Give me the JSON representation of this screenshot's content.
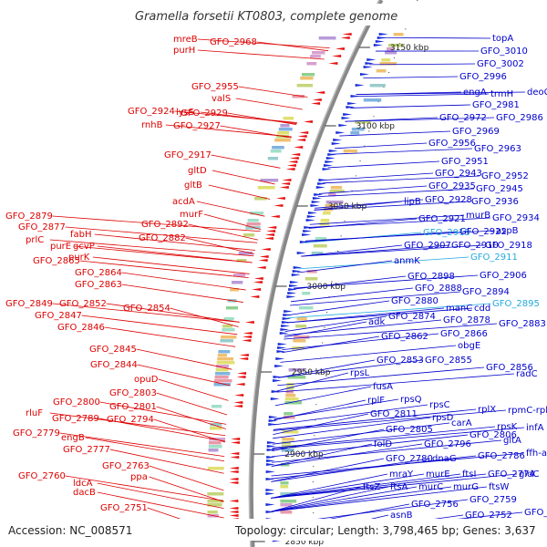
{
  "title": "Gramella forsetii KT0803, complete genome",
  "accession": "Accession: NC_008571",
  "topology": "Topology: circular; Length: 3,798,465 bp; Genes: 3,637",
  "colors": {
    "left_labels": "#dd0000",
    "right_labels": "#0000cc",
    "highlight": "#22aadd",
    "backbone": "#888888"
  },
  "kbp_marks": [
    {
      "text": "3150 kbp"
    },
    {
      "text": "3100 kbp"
    },
    {
      "text": "3050 kbp"
    },
    {
      "text": "3000 kbp"
    },
    {
      "text": "2950 kbp"
    },
    {
      "text": "2900 kbp"
    },
    {
      "text": "2850 kbp"
    }
  ],
  "left_labels": [
    {
      "text": "mreB"
    },
    {
      "text": "GFO_2968"
    },
    {
      "text": "purH"
    },
    {
      "text": "GFO_2955"
    },
    {
      "text": "valS"
    },
    {
      "text": "GFO_2924"
    },
    {
      "text": "lysS"
    },
    {
      "text": "GFO_2929"
    },
    {
      "text": "rnhB"
    },
    {
      "text": "GFO_2927"
    },
    {
      "text": "GFO_2917"
    },
    {
      "text": "gltD"
    },
    {
      "text": "gltB"
    },
    {
      "text": "acdA"
    },
    {
      "text": "murF"
    },
    {
      "text": "GFO_2879"
    },
    {
      "text": "GFO_2892"
    },
    {
      "text": "GFO_2877"
    },
    {
      "text": "fabH"
    },
    {
      "text": "GFO_2882"
    },
    {
      "text": "prlC"
    },
    {
      "text": "gcvP"
    },
    {
      "text": "purE"
    },
    {
      "text": "purK"
    },
    {
      "text": "GFO_2865"
    },
    {
      "text": "GFO_2864"
    },
    {
      "text": "GFO_2863"
    },
    {
      "text": "GFO_2849"
    },
    {
      "text": "GFO_2852"
    },
    {
      "text": "GFO_2854"
    },
    {
      "text": "GFO_2847"
    },
    {
      "text": "GFO_2846"
    },
    {
      "text": "GFO_2845"
    },
    {
      "text": "GFO_2844"
    },
    {
      "text": "opuD"
    },
    {
      "text": "GFO_2803"
    },
    {
      "text": "GFO_2800"
    },
    {
      "text": "GFO_2801"
    },
    {
      "text": "rluF"
    },
    {
      "text": "GFO_2789"
    },
    {
      "text": "GFO_2794"
    },
    {
      "text": "GFO_2779"
    },
    {
      "text": "engB"
    },
    {
      "text": "GFO_2777"
    },
    {
      "text": "GFO_2763"
    },
    {
      "text": "GFO_2760"
    },
    {
      "text": "ppa"
    },
    {
      "text": "ldcA"
    },
    {
      "text": "dacB"
    },
    {
      "text": "GFO_2751"
    }
  ],
  "right_labels": [
    {
      "text": "topA"
    },
    {
      "text": "GFO_3010"
    },
    {
      "text": "GFO_3002"
    },
    {
      "text": "GFO_2996"
    },
    {
      "text": "deoC"
    },
    {
      "text": "engA"
    },
    {
      "text": "trmH"
    },
    {
      "text": "GFO_2981"
    },
    {
      "text": "GFO_2972"
    },
    {
      "text": "GFO_2986"
    },
    {
      "text": "GFO_2969"
    },
    {
      "text": "GFO_2956"
    },
    {
      "text": "GFO_2963"
    },
    {
      "text": "GFO_2951"
    },
    {
      "text": "GFO_2943"
    },
    {
      "text": "GFO_2952"
    },
    {
      "text": "GFO_2935"
    },
    {
      "text": "GFO_2945"
    },
    {
      "text": "lipB"
    },
    {
      "text": "GFO_2928"
    },
    {
      "text": "GFO_2936"
    },
    {
      "text": "murB"
    },
    {
      "text": "GFO_2934"
    },
    {
      "text": "GFO_2921"
    },
    {
      "text": "GFO_2915"
    },
    {
      "text": "GFO_2922"
    },
    {
      "text": "aspB"
    },
    {
      "text": "GFO_2907"
    },
    {
      "text": "GFO_2910"
    },
    {
      "text": "GFO_2918"
    },
    {
      "text": "GFO_2911"
    },
    {
      "text": "anmK"
    },
    {
      "text": "GFO_2898"
    },
    {
      "text": "GFO_2906"
    },
    {
      "text": "GFO_2888"
    },
    {
      "text": "GFO_2894"
    },
    {
      "text": "GFO_2880"
    },
    {
      "text": "GFO_2895"
    },
    {
      "text": "manC"
    },
    {
      "text": "cdd"
    },
    {
      "text": "GFO_2874"
    },
    {
      "text": "GFO_2878"
    },
    {
      "text": "adk"
    },
    {
      "text": "GFO_2883"
    },
    {
      "text": "GFO_2862"
    },
    {
      "text": "GFO_2866"
    },
    {
      "text": "obgE"
    },
    {
      "text": "GFO_2853"
    },
    {
      "text": "GFO_2855"
    },
    {
      "text": "GFO_2856"
    },
    {
      "text": "rpsL"
    },
    {
      "text": "radC"
    },
    {
      "text": "fusA"
    },
    {
      "text": "rplF"
    },
    {
      "text": "rpsQ"
    },
    {
      "text": "rpsC"
    },
    {
      "text": "rplX"
    },
    {
      "text": "rpmC-rplD"
    },
    {
      "text": "GFO_2811"
    },
    {
      "text": "rpsD"
    },
    {
      "text": "carA"
    },
    {
      "text": "rpsK"
    },
    {
      "text": "infA"
    },
    {
      "text": "GFO_2805"
    },
    {
      "text": "GFO_2806"
    },
    {
      "text": "gltA"
    },
    {
      "text": "folD"
    },
    {
      "text": "GFO_2796"
    },
    {
      "text": "ffh-argS"
    },
    {
      "text": "GFO_2780"
    },
    {
      "text": "dnaG"
    },
    {
      "text": "GFO_2786"
    },
    {
      "text": "mraY"
    },
    {
      "text": "murE"
    },
    {
      "text": "ftsI"
    },
    {
      "text": "GFO_2774"
    },
    {
      "text": "gldC"
    },
    {
      "text": "ftsZ"
    },
    {
      "text": "ftsA"
    },
    {
      "text": "murC"
    },
    {
      "text": "murG"
    },
    {
      "text": "ftsW"
    },
    {
      "text": "GFO_2759"
    },
    {
      "text": "GFO_2756"
    },
    {
      "text": "GFO_2755"
    },
    {
      "text": "asnB"
    },
    {
      "text": "GFO_2752"
    }
  ]
}
